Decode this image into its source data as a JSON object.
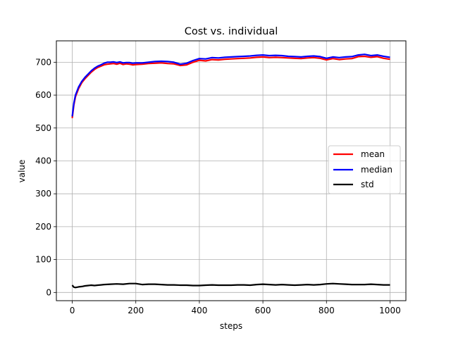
{
  "chart_data": {
    "type": "line",
    "title": "Cost vs. individual",
    "xlabel": "steps",
    "ylabel": "value",
    "xlim": [
      -50,
      1050
    ],
    "ylim": [
      -25,
      765
    ],
    "xticks": [
      0,
      200,
      400,
      600,
      800,
      1000
    ],
    "yticks": [
      0,
      100,
      200,
      300,
      400,
      500,
      600,
      700
    ],
    "grid": true,
    "legend_position": "center-right",
    "series": [
      {
        "name": "mean",
        "color": "#ff0000",
        "x": [
          0,
          5,
          10,
          20,
          30,
          40,
          50,
          60,
          70,
          80,
          90,
          100,
          110,
          120,
          130,
          140,
          150,
          160,
          170,
          180,
          190,
          200,
          220,
          240,
          260,
          280,
          300,
          320,
          340,
          360,
          380,
          400,
          420,
          440,
          460,
          480,
          500,
          520,
          540,
          560,
          580,
          600,
          620,
          640,
          660,
          680,
          700,
          720,
          740,
          760,
          780,
          800,
          820,
          840,
          860,
          880,
          900,
          920,
          940,
          960,
          980,
          1000
        ],
        "values": [
          530,
          570,
          595,
          620,
          638,
          650,
          660,
          670,
          678,
          684,
          688,
          692,
          694,
          695,
          696,
          694,
          697,
          693,
          695,
          694,
          692,
          693,
          694,
          696,
          697,
          698,
          696,
          695,
          690,
          692,
          700,
          706,
          704,
          708,
          707,
          709,
          710,
          711,
          712,
          713,
          715,
          716,
          714,
          715,
          714,
          713,
          712,
          711,
          713,
          714,
          712,
          707,
          711,
          708,
          710,
          711,
          717,
          718,
          715,
          717,
          712,
          709
        ]
      },
      {
        "name": "median",
        "color": "#0000ff",
        "x": [
          0,
          5,
          10,
          20,
          30,
          40,
          50,
          60,
          70,
          80,
          90,
          100,
          110,
          120,
          130,
          140,
          150,
          160,
          170,
          180,
          190,
          200,
          220,
          240,
          260,
          280,
          300,
          320,
          340,
          360,
          380,
          400,
          420,
          440,
          460,
          480,
          500,
          520,
          540,
          560,
          580,
          600,
          620,
          640,
          660,
          680,
          700,
          720,
          740,
          760,
          780,
          800,
          820,
          840,
          860,
          880,
          900,
          920,
          940,
          960,
          980,
          1000
        ],
        "values": [
          535,
          575,
          600,
          625,
          642,
          654,
          664,
          674,
          682,
          688,
          692,
          697,
          700,
          700,
          701,
          699,
          701,
          698,
          699,
          699,
          697,
          698,
          698,
          700,
          702,
          703,
          702,
          700,
          694,
          697,
          705,
          711,
          710,
          714,
          713,
          715,
          716,
          717,
          718,
          719,
          721,
          722,
          720,
          721,
          720,
          718,
          717,
          716,
          718,
          719,
          717,
          712,
          716,
          714,
          716,
          717,
          722,
          724,
          720,
          722,
          718,
          715
        ]
      },
      {
        "name": "std",
        "color": "#000000",
        "x": [
          0,
          5,
          10,
          20,
          30,
          40,
          50,
          60,
          70,
          80,
          90,
          100,
          120,
          140,
          160,
          180,
          200,
          220,
          240,
          260,
          280,
          300,
          320,
          340,
          360,
          380,
          400,
          420,
          440,
          460,
          480,
          500,
          520,
          540,
          560,
          580,
          600,
          620,
          640,
          660,
          680,
          700,
          720,
          740,
          760,
          780,
          800,
          820,
          840,
          860,
          880,
          900,
          920,
          940,
          960,
          980,
          1000
        ],
        "values": [
          22,
          16,
          15,
          17,
          18,
          20,
          21,
          22,
          21,
          22,
          23,
          24,
          25,
          26,
          25,
          27,
          27,
          24,
          25,
          25,
          24,
          23,
          23,
          22,
          22,
          21,
          21,
          22,
          23,
          22,
          22,
          22,
          23,
          23,
          22,
          24,
          25,
          24,
          23,
          24,
          23,
          22,
          23,
          24,
          23,
          24,
          26,
          27,
          26,
          25,
          24,
          24,
          24,
          25,
          24,
          23,
          23
        ]
      }
    ]
  }
}
